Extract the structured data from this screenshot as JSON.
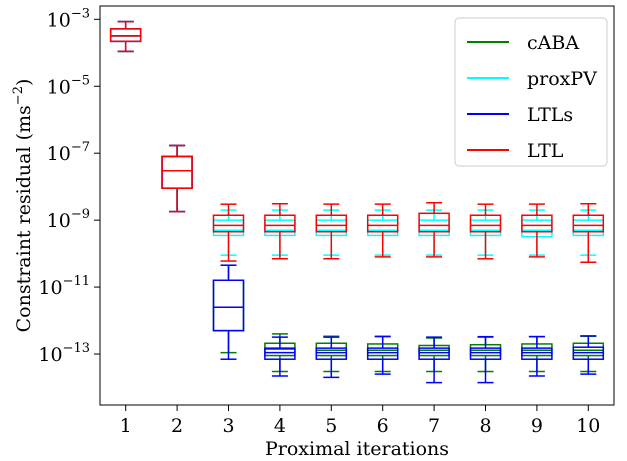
{
  "chart_data": {
    "type": "box",
    "xlabel": "Proximal iterations",
    "ylabel": "Constraint residual (ms",
    "ylabel_sup": "−2",
    "ylabel_close": ")",
    "y_scale": "log",
    "ylim": [
      3e-15,
      0.0025
    ],
    "xlim": [
      0.5,
      10.5
    ],
    "x_ticks": [
      1,
      2,
      3,
      4,
      5,
      6,
      7,
      8,
      9,
      10
    ],
    "x_tick_labels": [
      "1",
      "2",
      "3",
      "4",
      "5",
      "6",
      "7",
      "8",
      "9",
      "10"
    ],
    "y_ticks": [
      {
        "value": 0.001,
        "base": "10",
        "exp": "−3"
      },
      {
        "value": 1e-05,
        "base": "10",
        "exp": "−5"
      },
      {
        "value": 1e-07,
        "base": "10",
        "exp": "−7"
      },
      {
        "value": 1e-09,
        "base": "10",
        "exp": "−9"
      },
      {
        "value": 1e-11,
        "base": "10",
        "exp": "−11"
      },
      {
        "value": 1e-13,
        "base": "10",
        "exp": "−13"
      }
    ],
    "grid": false,
    "legend_position": "top-right",
    "series": [
      {
        "name": "cABA",
        "color": "#008000",
        "boxes": [
          {
            "x": 1,
            "whislo": 0.00011,
            "q1": 0.00022,
            "med": 0.00032,
            "q3": 0.00052,
            "whishi": 0.00085
          },
          {
            "x": 2,
            "whislo": 1.8e-09,
            "q1": 9e-09,
            "med": 3e-08,
            "q3": 8e-08,
            "whishi": 1.7e-07
          },
          {
            "x": 3,
            "whislo": 1.1e-13,
            "q1": 5e-13,
            "med": 2.5e-12,
            "q3": 1.6e-11,
            "whishi": 4.5e-11
          },
          {
            "x": 4,
            "whislo": 3e-14,
            "q1": 9e-14,
            "med": 1.4e-13,
            "q3": 2.1e-13,
            "whishi": 4e-13
          },
          {
            "x": 5,
            "whislo": 3e-14,
            "q1": 9e-14,
            "med": 1.3e-13,
            "q3": 2.1e-13,
            "whishi": 3.4e-13
          },
          {
            "x": 6,
            "whislo": 3e-14,
            "q1": 9e-14,
            "med": 1.3e-13,
            "q3": 2e-13,
            "whishi": 3.4e-13
          },
          {
            "x": 7,
            "whislo": 3e-14,
            "q1": 9e-14,
            "med": 1.3e-13,
            "q3": 1.8e-13,
            "whishi": 3e-13
          },
          {
            "x": 8,
            "whislo": 3e-14,
            "q1": 9e-14,
            "med": 1.3e-13,
            "q3": 1.9e-13,
            "whishi": 3.2e-13
          },
          {
            "x": 9,
            "whislo": 3e-14,
            "q1": 9e-14,
            "med": 1.3e-13,
            "q3": 2e-13,
            "whishi": 3.3e-13
          },
          {
            "x": 10,
            "whislo": 3e-14,
            "q1": 9e-14,
            "med": 1.3e-13,
            "q3": 2.1e-13,
            "whishi": 3.4e-13
          }
        ]
      },
      {
        "name": "proxPV",
        "color": "#00ffff",
        "boxes": [
          {
            "x": 1,
            "whislo": 0.00011,
            "q1": 0.00022,
            "med": 0.00032,
            "q3": 0.00052,
            "whishi": 0.00085
          },
          {
            "x": 2,
            "whislo": 1.8e-09,
            "q1": 9e-09,
            "med": 3e-08,
            "q3": 8e-08,
            "whishi": 1.7e-07
          },
          {
            "x": 3,
            "whislo": 9e-11,
            "q1": 3.5e-10,
            "med": 5e-10,
            "q3": 1e-09,
            "whishi": 2e-09
          },
          {
            "x": 4,
            "whislo": 9e-11,
            "q1": 3.5e-10,
            "med": 5e-10,
            "q3": 1e-09,
            "whishi": 2e-09
          },
          {
            "x": 5,
            "whislo": 9e-11,
            "q1": 3.5e-10,
            "med": 5e-10,
            "q3": 1e-09,
            "whishi": 2e-09
          },
          {
            "x": 6,
            "whislo": 9e-11,
            "q1": 3.5e-10,
            "med": 5e-10,
            "q3": 1e-09,
            "whishi": 2e-09
          },
          {
            "x": 7,
            "whislo": 9e-11,
            "q1": 3.5e-10,
            "med": 5e-10,
            "q3": 1e-09,
            "whishi": 2e-09
          },
          {
            "x": 8,
            "whislo": 9e-11,
            "q1": 3.5e-10,
            "med": 5e-10,
            "q3": 1e-09,
            "whishi": 2e-09
          },
          {
            "x": 9,
            "whislo": 9e-11,
            "q1": 3.2e-10,
            "med": 5e-10,
            "q3": 1e-09,
            "whishi": 2e-09
          },
          {
            "x": 10,
            "whislo": 9e-11,
            "q1": 3.5e-10,
            "med": 5e-10,
            "q3": 1e-09,
            "whishi": 2e-09
          }
        ]
      },
      {
        "name": "LTLs",
        "color": "#0000ff",
        "boxes": [
          {
            "x": 1,
            "whislo": 0.00011,
            "q1": 0.00022,
            "med": 0.00032,
            "q3": 0.00052,
            "whishi": 0.00085
          },
          {
            "x": 2,
            "whislo": 1.8e-09,
            "q1": 9e-09,
            "med": 3e-08,
            "q3": 8e-08,
            "whishi": 1.7e-07
          },
          {
            "x": 3,
            "whislo": 7e-14,
            "q1": 5e-13,
            "med": 2.5e-12,
            "q3": 1.6e-11,
            "whishi": 4.5e-11
          },
          {
            "x": 4,
            "whislo": 2.2e-14,
            "q1": 7e-14,
            "med": 1.1e-13,
            "q3": 1.5e-13,
            "whishi": 3.2e-13
          },
          {
            "x": 5,
            "whislo": 2e-14,
            "q1": 7e-14,
            "med": 1.1e-13,
            "q3": 1.5e-13,
            "whishi": 3.2e-13
          },
          {
            "x": 6,
            "whislo": 2.5e-14,
            "q1": 7e-14,
            "med": 1.1e-13,
            "q3": 1.5e-13,
            "whishi": 3.3e-13
          },
          {
            "x": 7,
            "whislo": 1.4e-14,
            "q1": 7e-14,
            "med": 1.1e-13,
            "q3": 1.5e-13,
            "whishi": 3.2e-13
          },
          {
            "x": 8,
            "whislo": 1.4e-14,
            "q1": 7e-14,
            "med": 1.1e-13,
            "q3": 1.5e-13,
            "whishi": 3.3e-13
          },
          {
            "x": 9,
            "whislo": 2.2e-14,
            "q1": 7e-14,
            "med": 1.1e-13,
            "q3": 1.5e-13,
            "whishi": 3.3e-13
          },
          {
            "x": 10,
            "whislo": 2.5e-14,
            "q1": 7e-14,
            "med": 1.1e-13,
            "q3": 1.6e-13,
            "whishi": 3.5e-13
          }
        ]
      },
      {
        "name": "LTL",
        "color": "#ff0000",
        "boxes": [
          {
            "x": 1,
            "whislo": 0.00011,
            "q1": 0.00022,
            "med": 0.00032,
            "q3": 0.00052,
            "whishi": 0.00085
          },
          {
            "x": 2,
            "whislo": 1.8e-09,
            "q1": 9e-09,
            "med": 3e-08,
            "q3": 8e-08,
            "whishi": 1.7e-07
          },
          {
            "x": 3,
            "whislo": 6e-11,
            "q1": 4.5e-10,
            "med": 7e-10,
            "q3": 1.4e-09,
            "whishi": 3e-09
          },
          {
            "x": 4,
            "whislo": 7e-11,
            "q1": 4.5e-10,
            "med": 7e-10,
            "q3": 1.4e-09,
            "whishi": 3.1e-09
          },
          {
            "x": 5,
            "whislo": 7e-11,
            "q1": 4.5e-10,
            "med": 7e-10,
            "q3": 1.4e-09,
            "whishi": 3e-09
          },
          {
            "x": 6,
            "whislo": 8e-11,
            "q1": 4.5e-10,
            "med": 7e-10,
            "q3": 1.4e-09,
            "whishi": 3e-09
          },
          {
            "x": 7,
            "whislo": 8e-11,
            "q1": 4.5e-10,
            "med": 7e-10,
            "q3": 1.6e-09,
            "whishi": 3.3e-09
          },
          {
            "x": 8,
            "whislo": 7e-11,
            "q1": 4.5e-10,
            "med": 7e-10,
            "q3": 1.4e-09,
            "whishi": 3e-09
          },
          {
            "x": 9,
            "whislo": 8e-11,
            "q1": 4.5e-10,
            "med": 7e-10,
            "q3": 1.4e-09,
            "whishi": 3e-09
          },
          {
            "x": 10,
            "whislo": 5.5e-11,
            "q1": 4.5e-10,
            "med": 7e-10,
            "q3": 1.4e-09,
            "whishi": 3.1e-09
          }
        ]
      }
    ]
  }
}
